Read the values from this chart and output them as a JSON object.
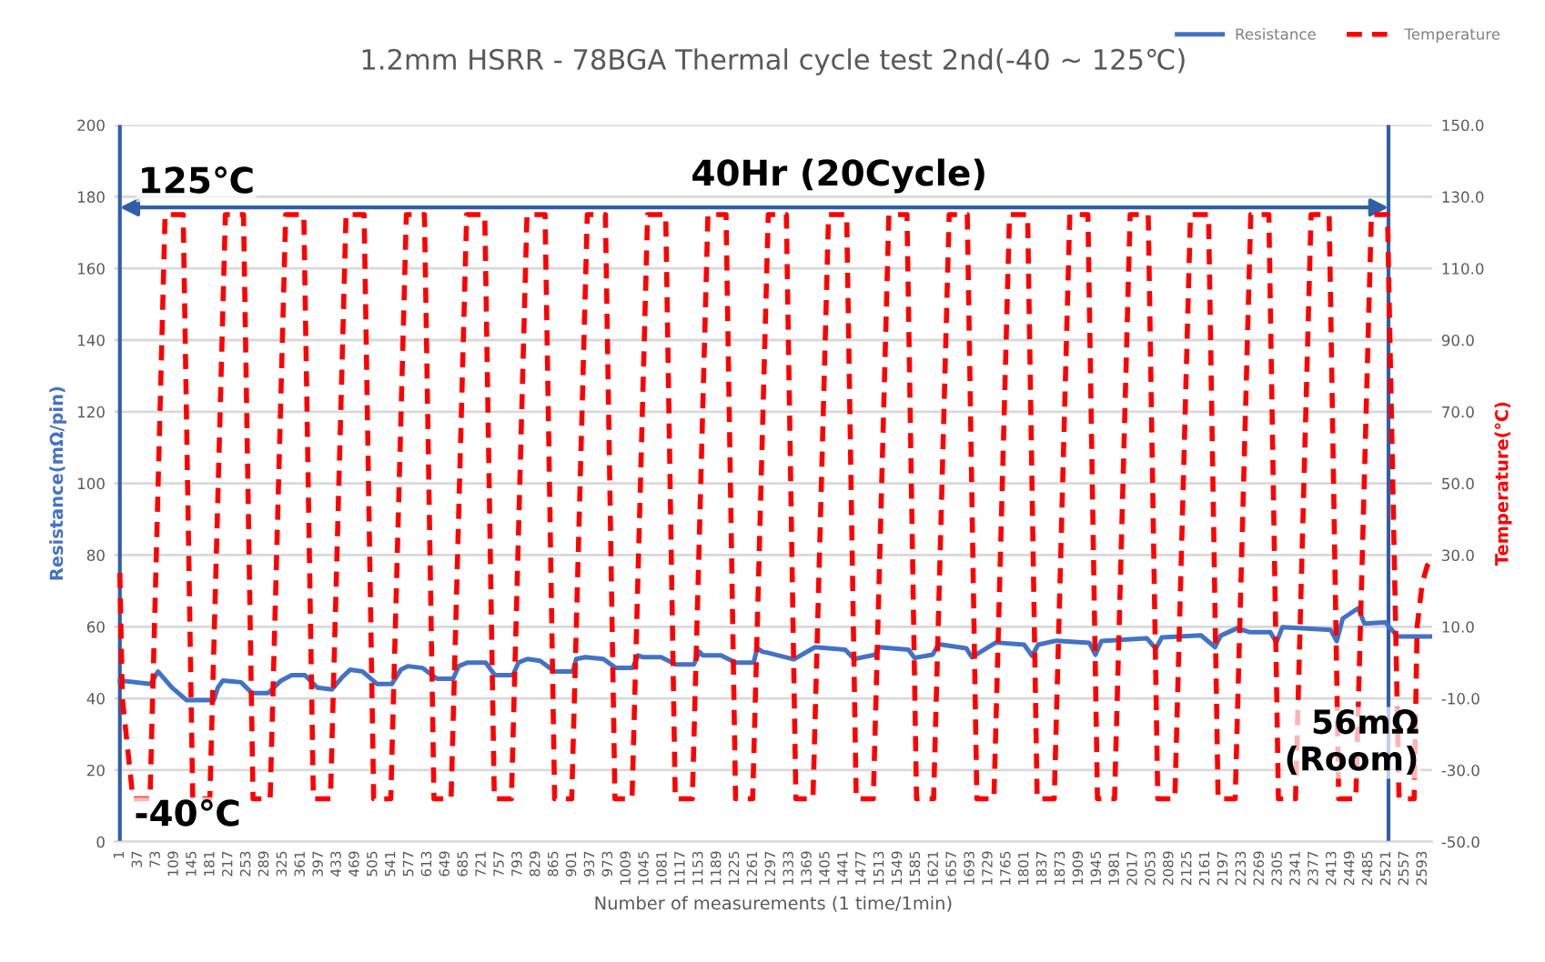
{
  "chart_data": {
    "type": "line",
    "title": "1.2mm HSRR - 78BGA Thermal cycle test 2nd(-40 ~ 125℃)",
    "xlabel": "Number of measurements (1 time/1min)",
    "ylabel": "Resistance(mΩ/pin)",
    "y2label": "Temperature(℃)",
    "series": [
      {
        "name": "Resistance",
        "color": "#4472c4",
        "line_style": "solid",
        "x": [
          1,
          62,
          77,
          105,
          134,
          188,
          196,
          206,
          242,
          264,
          296,
          322,
          343,
          369,
          394,
          423,
          444,
          459,
          484,
          513,
          542,
          560,
          574,
          603,
          632,
          664,
          675,
          693,
          729,
          747,
          783,
          794,
          812,
          837,
          866,
          902,
          909,
          927,
          963,
          988,
          1021,
          1032,
          1042,
          1078,
          1107,
          1143,
          1154,
          1161,
          1197,
          1226,
          1262,
          1269,
          1280,
          1288,
          1342,
          1384,
          1444,
          1462,
          1504,
          1510,
          1570,
          1582,
          1618,
          1630,
          1685,
          1696,
          1744,
          1800,
          1816,
          1828,
          1864,
          1930,
          1942,
          1954,
          2044,
          2062,
          2074,
          2152,
          2180,
          2191,
          2224,
          2248,
          2290,
          2302,
          2314,
          2410,
          2422,
          2434,
          2465,
          2477,
          2519,
          2543,
          2609
        ],
        "values": [
          45,
          44,
          47.5,
          43,
          39.5,
          39.5,
          43,
          45,
          44.5,
          41.5,
          41.5,
          45,
          46.5,
          46.5,
          43,
          42.5,
          46,
          48,
          47.5,
          44,
          44,
          48,
          49,
          48.5,
          45.5,
          45.5,
          49,
          50,
          50,
          46.5,
          46.5,
          50,
          51,
          50.5,
          47.5,
          47.5,
          51,
          51.5,
          51,
          48.5,
          48.5,
          52,
          51.5,
          51.5,
          49.5,
          49.5,
          53,
          52,
          52,
          50,
          50,
          54,
          53,
          52.8,
          50.9,
          54.3,
          53.6,
          51,
          52.2,
          54.3,
          53.6,
          51.3,
          52.2,
          55.1,
          54,
          51.5,
          55.6,
          55,
          51.9,
          55,
          56.1,
          55.5,
          52.2,
          56,
          56.8,
          53.9,
          57,
          57.6,
          54.3,
          57.5,
          59.6,
          58.5,
          58.5,
          55.6,
          59.9,
          59.1,
          56,
          62.3,
          65.2,
          60.9,
          61.2,
          57.3,
          57.3
        ]
      },
      {
        "name": "Temperature",
        "color": "#ff0000",
        "line_style": "dashed",
        "axis": "y2",
        "x": [
          1,
          6,
          27,
          61,
          91,
          127,
          146,
          180,
          211,
          247,
          266,
          300,
          331,
          367,
          386,
          420,
          451,
          487,
          506,
          540,
          571,
          607,
          626,
          660,
          691,
          727,
          746,
          780,
          811,
          847,
          866,
          900,
          931,
          967,
          986,
          1020,
          1051,
          1087,
          1106,
          1140,
          1171,
          1207,
          1226,
          1260,
          1291,
          1327,
          1346,
          1380,
          1411,
          1447,
          1466,
          1500,
          1531,
          1567,
          1586,
          1620,
          1651,
          1687,
          1706,
          1740,
          1771,
          1807,
          1826,
          1860,
          1891,
          1927,
          1946,
          1980,
          2011,
          2047,
          2066,
          2100,
          2131,
          2167,
          2186,
          2220,
          2251,
          2287,
          2306,
          2340,
          2371,
          2407,
          2426,
          2460,
          2491,
          2523,
          2546,
          2576,
          2582,
          2592,
          2602,
          2612
        ],
        "values": [
          25,
          -10,
          -38,
          -38,
          125,
          125,
          -38,
          -38,
          125,
          125,
          -38,
          -38,
          125,
          125,
          -38,
          -38,
          125,
          125,
          -38,
          -38,
          125,
          125,
          -38,
          -38,
          125,
          125,
          -38,
          -38,
          125,
          125,
          -38,
          -38,
          125,
          125,
          -38,
          -38,
          125,
          125,
          -38,
          -38,
          125,
          125,
          -38,
          -38,
          125,
          125,
          -38,
          -38,
          125,
          125,
          -38,
          -38,
          125,
          125,
          -38,
          -38,
          125,
          125,
          -38,
          -38,
          125,
          125,
          -38,
          -38,
          125,
          125,
          -38,
          -38,
          125,
          125,
          -38,
          -38,
          125,
          125,
          -38,
          -38,
          125,
          125,
          -38,
          -38,
          125,
          125,
          -38,
          -38,
          125,
          125,
          -38,
          -38,
          10,
          22,
          27,
          29
        ]
      }
    ],
    "xlim": [
      -10,
      2612
    ],
    "xticks": [
      1,
      37,
      73,
      109,
      145,
      181,
      217,
      253,
      289,
      325,
      361,
      397,
      433,
      469,
      505,
      541,
      577,
      613,
      649,
      685,
      721,
      757,
      793,
      829,
      865,
      901,
      937,
      973,
      1009,
      1045,
      1081,
      1117,
      1153,
      1189,
      1225,
      1261,
      1297,
      1333,
      1369,
      1405,
      1441,
      1477,
      1513,
      1549,
      1585,
      1621,
      1657,
      1693,
      1729,
      1765,
      1801,
      1837,
      1873,
      1909,
      1945,
      1981,
      2017,
      2053,
      2089,
      2125,
      2161,
      2197,
      2233,
      2269,
      2305,
      2341,
      2377,
      2413,
      2449,
      2485,
      2521,
      2557,
      2593
    ],
    "ylim": [
      0,
      200
    ],
    "yticks": [
      0,
      20,
      40,
      60,
      80,
      100,
      120,
      140,
      160,
      180,
      200
    ],
    "y2lim": [
      -50,
      150
    ],
    "y2ticks": [
      {
        "value": -50,
        "label": "-50.0"
      },
      {
        "value": -30,
        "label": "-30.0"
      },
      {
        "value": -10,
        "label": "-10.0"
      },
      {
        "value": 10,
        "label": "10.0"
      },
      {
        "value": 30,
        "label": "30.0"
      },
      {
        "value": 50,
        "label": "50.0"
      },
      {
        "value": 70,
        "label": "70.0"
      },
      {
        "value": 90,
        "label": "90.0"
      },
      {
        "value": 110,
        "label": "110.0"
      },
      {
        "value": 130,
        "label": "130.0"
      },
      {
        "value": 150,
        "label": "150.0"
      }
    ],
    "ref_lines": [
      {
        "axis": "x",
        "value": 1,
        "color": "#2f5fa8"
      },
      {
        "axis": "x",
        "value": 2525,
        "color": "#2f5fa8"
      }
    ],
    "annotations": [
      "125℃",
      "40Hr (20Cycle)",
      "-40℃",
      "56mΩ\n(Room)"
    ],
    "grid": "y",
    "legend": "top right",
    "marker": "none"
  }
}
